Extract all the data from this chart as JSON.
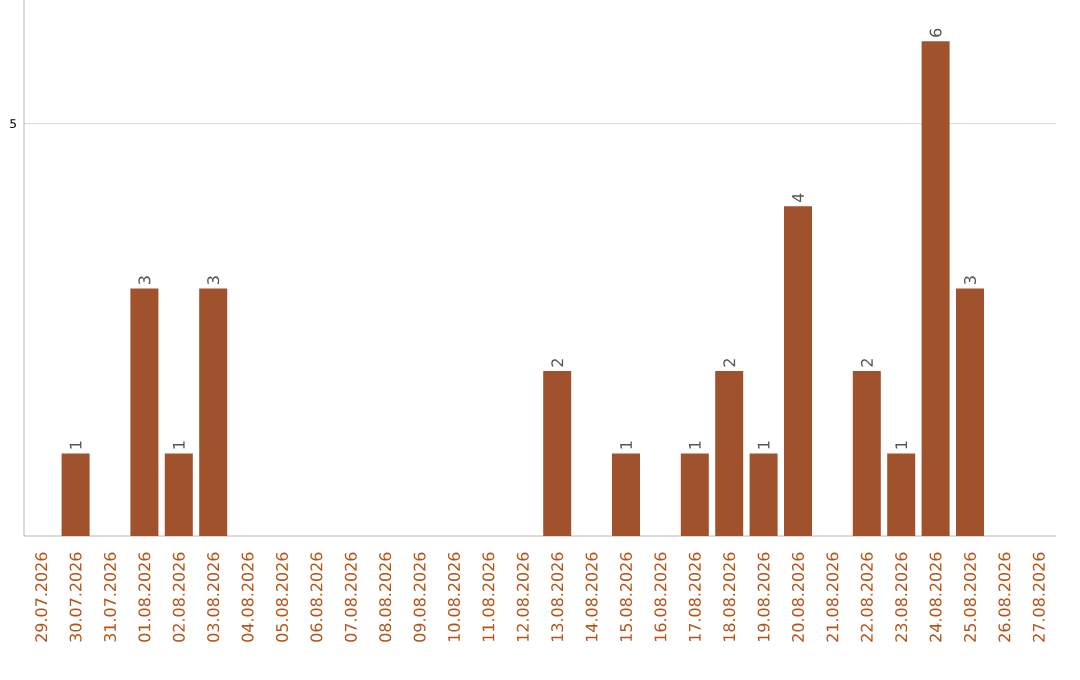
{
  "chart_data": {
    "type": "bar",
    "categories": [
      "29.07.2026",
      "30.07.2026",
      "31.07.2026",
      "01.08.2026",
      "02.08.2026",
      "03.08.2026",
      "04.08.2026",
      "05.08.2026",
      "06.08.2026",
      "07.08.2026",
      "08.08.2026",
      "09.08.2026",
      "10.08.2026",
      "11.08.2026",
      "12.08.2026",
      "13.08.2026",
      "14.08.2026",
      "15.08.2026",
      "16.08.2026",
      "17.08.2026",
      "18.08.2026",
      "19.08.2026",
      "20.08.2026",
      "21.08.2026",
      "22.08.2026",
      "23.08.2026",
      "24.08.2026",
      "25.08.2026",
      "26.08.2026",
      "27.08.2026"
    ],
    "values": [
      0,
      1,
      0,
      3,
      1,
      3,
      0,
      0,
      0,
      0,
      0,
      0,
      0,
      0,
      0,
      2,
      0,
      1,
      0,
      1,
      2,
      1,
      4,
      0,
      2,
      1,
      6,
      3,
      0,
      0
    ],
    "value_labels": [
      null,
      "1",
      null,
      "3",
      "1",
      "3",
      null,
      null,
      null,
      null,
      null,
      null,
      null,
      null,
      null,
      "2",
      null,
      "1",
      null,
      "1",
      "2",
      "1",
      "4",
      null,
      "2",
      "1",
      "6",
      "3",
      null,
      null
    ],
    "color": "#a0522d",
    "ylim": [
      0,
      6.5
    ],
    "yticks": [
      5
    ],
    "grid": "y"
  }
}
